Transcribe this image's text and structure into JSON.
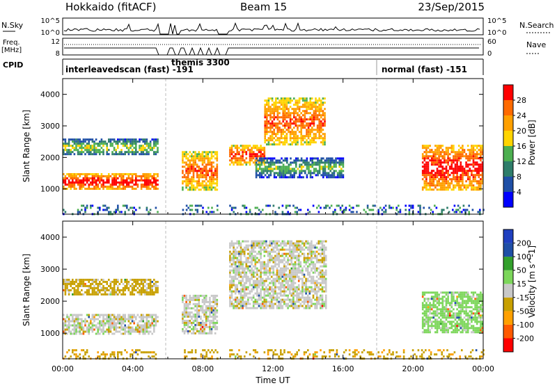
{
  "header": {
    "station": "Hokkaido (fitACF)",
    "beam": "Beam 15",
    "date": "23/Sep/2015"
  },
  "strip_labels": {
    "nsky": "N.Sky",
    "freq_line1": "Freq.",
    "freq_line2": "[MHz]",
    "cpid": "CPID",
    "nsearch": "N.Search",
    "nave": "Nave"
  },
  "strip_ticks": {
    "nsky_left": [
      "10^5",
      "10^0"
    ],
    "nsky_right": [
      "10^5",
      "10^0"
    ],
    "freq_left": [
      "12",
      "8"
    ],
    "freq_right": [
      "60",
      "0"
    ]
  },
  "cpid_labels": {
    "mode1": "interleavedscan (fast)  -191",
    "mode2": "themis 3300",
    "mode3": "normal (fast)  -151"
  },
  "colors": {
    "power_scale": [
      "#0000ff",
      "#1f4fa6",
      "#2e7d6a",
      "#4caf50",
      "#ffd400",
      "#ffa000",
      "#ff6a00",
      "#ff0000"
    ],
    "velocity_scale": [
      "#ff0000",
      "#ff5a00",
      "#ffa000",
      "#c8a000",
      "#c8c8c8",
      "#7cd65a",
      "#33a02c",
      "#1f4fa6",
      "#1f3fbf"
    ],
    "ground_scatter": "#c8c8c8"
  },
  "chart_data": [
    {
      "type": "heatmap",
      "panel": "power",
      "xlabel": "",
      "ylabel": "Slant Range [km]",
      "yticks": [
        1000,
        2000,
        3000,
        4000
      ],
      "ylim": [
        200,
        4500
      ],
      "x_tick_labels": [
        "00:00",
        "04:00",
        "08:00",
        "12:00",
        "16:00",
        "20:00",
        "00:00"
      ],
      "xlim_hours": [
        0,
        24
      ],
      "colorbar": {
        "label": "Power [dB]",
        "ticks": [
          "4",
          "8",
          "12",
          "16",
          "20",
          "24",
          "28"
        ],
        "range": [
          0,
          32
        ]
      },
      "regions": [
        {
          "t": [
            0.0,
            5.4
          ],
          "range_km": [
            1000,
            1500
          ],
          "value_db": 26
        },
        {
          "t": [
            0.0,
            5.4
          ],
          "range_km": [
            2100,
            2600
          ],
          "value_db": 12
        },
        {
          "t": [
            6.8,
            8.8
          ],
          "range_km": [
            1000,
            2200
          ],
          "value_db": 22
        },
        {
          "t": [
            9.5,
            11.5
          ],
          "range_km": [
            1800,
            2400
          ],
          "value_db": 24
        },
        {
          "t": [
            11.5,
            15.0
          ],
          "range_km": [
            2400,
            3900
          ],
          "value_db": 22
        },
        {
          "t": [
            11.0,
            16.0
          ],
          "range_km": [
            1400,
            2000
          ],
          "value_db": 10
        },
        {
          "t": [
            20.5,
            24.0
          ],
          "range_km": [
            1000,
            2400
          ],
          "value_db": 26
        },
        {
          "t": [
            0.0,
            24.0
          ],
          "range_km": [
            200,
            500
          ],
          "value_db": 8
        }
      ]
    },
    {
      "type": "heatmap",
      "panel": "velocity",
      "xlabel": "Time UT",
      "ylabel": "Slant Range [km]",
      "yticks": [
        1000,
        2000,
        3000,
        4000
      ],
      "ylim": [
        200,
        4500
      ],
      "x_tick_labels": [
        "00:00",
        "04:00",
        "08:00",
        "12:00",
        "16:00",
        "20:00",
        "00:00"
      ],
      "xlim_hours": [
        0,
        24
      ],
      "colorbar": {
        "label": "Velocity [m s^-1]",
        "ticks": [
          "200",
          "100",
          "50",
          "15",
          "-15",
          "-50",
          "-100",
          "-200"
        ],
        "range": [
          -250,
          250
        ]
      },
      "regions": [
        {
          "t": [
            0.0,
            5.4
          ],
          "range_km": [
            1000,
            1600
          ],
          "value_ms": 0
        },
        {
          "t": [
            0.0,
            5.4
          ],
          "range_km": [
            2200,
            2700
          ],
          "value_ms": -30
        },
        {
          "t": [
            6.8,
            8.8
          ],
          "range_km": [
            1000,
            2200
          ],
          "value_ms": 0
        },
        {
          "t": [
            9.5,
            15.0
          ],
          "range_km": [
            1800,
            3900
          ],
          "value_ms": 0
        },
        {
          "t": [
            20.5,
            24.0
          ],
          "range_km": [
            1000,
            2300
          ],
          "value_ms": 30
        },
        {
          "t": [
            0.0,
            24.0
          ],
          "range_km": [
            200,
            500
          ],
          "value_ms": -40
        }
      ]
    }
  ]
}
